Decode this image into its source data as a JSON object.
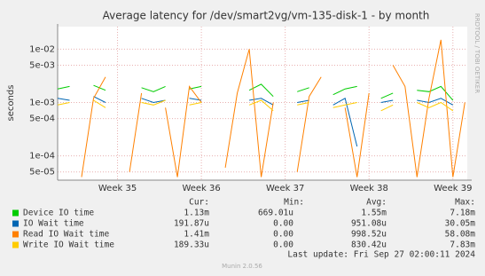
{
  "chart_data": {
    "type": "line",
    "title": "Average latency for /dev/smart2vg/vm-135-disk-1 - by month",
    "y_label": "seconds",
    "side_text": "RRDTOOL / TOBI OETIKER",
    "log_y": true,
    "grid": true,
    "xlim": [
      0,
      34.2
    ],
    "xticks": [
      {
        "value": 5,
        "label": "Week 35"
      },
      {
        "value": 12,
        "label": "Week 36"
      },
      {
        "value": 19,
        "label": "Week 37"
      },
      {
        "value": 26,
        "label": "Week 38"
      },
      {
        "value": 33,
        "label": "Week 39"
      }
    ],
    "ylim": [
      3.5e-05,
      0.0265
    ],
    "yticks": [
      {
        "value": 5e-05,
        "label": "5e-05"
      },
      {
        "value": 0.0001,
        "label": "1e-04"
      },
      {
        "value": 0.0005,
        "label": "5e-04"
      },
      {
        "value": 0.001,
        "label": "1e-03"
      },
      {
        "value": 0.005,
        "label": "5e-03"
      },
      {
        "value": 0.01,
        "label": "1e-02"
      }
    ],
    "x": [
      0,
      1,
      2,
      3,
      4,
      5,
      6,
      7,
      8,
      9,
      10,
      11,
      12,
      13,
      14,
      15,
      16,
      17,
      18,
      19,
      20,
      21,
      22,
      23,
      24,
      25,
      26,
      27,
      28,
      29,
      30,
      31,
      32,
      33,
      34
    ],
    "legend_headers": [
      "Cur:",
      "Min:",
      "Avg:",
      "Max:"
    ],
    "series": [
      {
        "name": "Device IO time",
        "color": "#00cc00",
        "cur": "1.13m",
        "min": "669.01u",
        "avg": "1.55m",
        "max": "7.18m",
        "values": [
          0.0018,
          0.002,
          null,
          0.0021,
          0.0017,
          null,
          null,
          0.0019,
          0.0016,
          0.002,
          null,
          0.0018,
          0.002,
          null,
          0.0015,
          null,
          0.0017,
          0.0022,
          0.0013,
          null,
          0.0016,
          0.0019,
          null,
          0.0014,
          0.0018,
          0.002,
          null,
          0.0012,
          0.0015,
          null,
          0.0017,
          0.0016,
          0.002,
          0.0011,
          null
        ]
      },
      {
        "name": "IO Wait time",
        "color": "#0066b3",
        "cur": "191.87u",
        "min": "0.00",
        "avg": "951.08u",
        "max": "30.05m",
        "values": [
          0.0012,
          0.0011,
          null,
          0.0013,
          0.001,
          null,
          null,
          0.0012,
          0.001,
          0.0011,
          null,
          0.0012,
          0.0011,
          null,
          0.001,
          null,
          0.0011,
          0.0012,
          0.0009,
          null,
          0.001,
          0.0011,
          null,
          0.0009,
          0.0012,
          0.00015,
          null,
          0.001,
          0.0011,
          null,
          0.0011,
          0.001,
          0.0012,
          0.0009,
          null
        ]
      },
      {
        "name": "Read IO Wait time",
        "color": "#ff8000",
        "cur": "1.41m",
        "min": "0.00",
        "avg": "998.52u",
        "max": "58.08m",
        "values": [
          0.001,
          null,
          4e-05,
          0.0012,
          0.003,
          null,
          5e-05,
          0.0015,
          null,
          0.0008,
          4e-05,
          0.002,
          0.001,
          null,
          6e-05,
          0.0015,
          0.01,
          4e-05,
          0.001,
          null,
          5e-05,
          0.0013,
          0.003,
          null,
          0.0008,
          4e-05,
          0.0015,
          null,
          0.005,
          0.002,
          4e-05,
          0.0012,
          0.015,
          4e-05,
          0.001
        ]
      },
      {
        "name": "Write IO Wait time",
        "color": "#ffcc00",
        "cur": "189.33u",
        "min": "0.00",
        "avg": "830.42u",
        "max": "7.83m",
        "values": [
          0.0009,
          0.001,
          null,
          0.0011,
          0.0008,
          null,
          null,
          0.001,
          0.0009,
          0.0011,
          null,
          0.0009,
          0.001,
          null,
          0.0008,
          null,
          0.0009,
          0.0011,
          0.0007,
          null,
          0.0009,
          0.001,
          null,
          0.0008,
          0.0009,
          0.001,
          null,
          0.0007,
          0.0009,
          null,
          0.001,
          0.0008,
          0.001,
          0.0007,
          null
        ]
      }
    ],
    "last_update": "Last update: Fri Sep 27 02:00:11 2024",
    "footer": "Munin 2.0.56"
  }
}
